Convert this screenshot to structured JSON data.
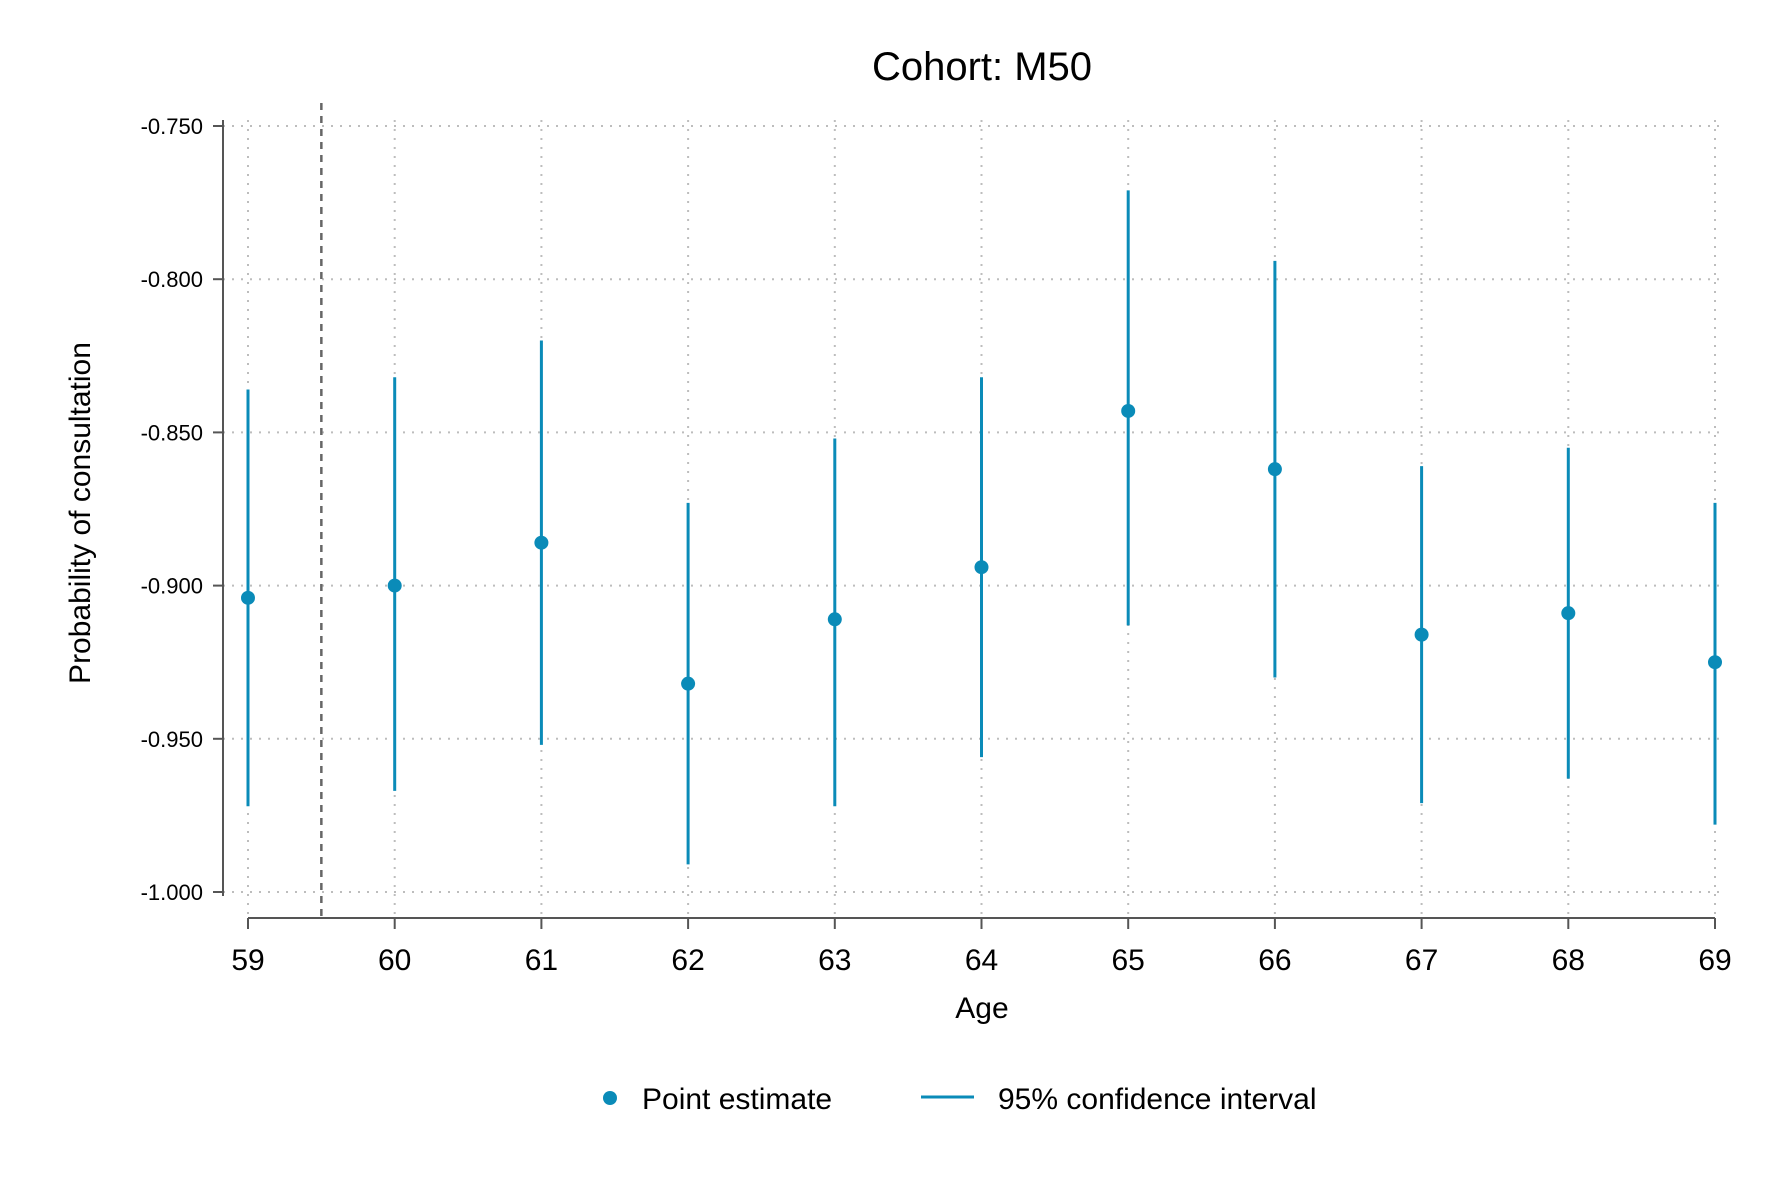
{
  "chart_data": {
    "type": "scatter",
    "title": "Cohort: M50",
    "xlabel": "Age",
    "ylabel": "Probability of consultation",
    "x": [
      59,
      60,
      61,
      62,
      63,
      64,
      65,
      66,
      67,
      68,
      69
    ],
    "xlim": [
      59,
      69
    ],
    "ylim": [
      -1.0,
      -0.75
    ],
    "yticks": [
      -0.75,
      -0.8,
      -0.85,
      -0.9,
      -0.95,
      -1.0
    ],
    "ytick_labels": [
      "-0.750",
      "-0.800",
      "-0.850",
      "-0.900",
      "-0.950",
      "-1.000"
    ],
    "xtick_labels": [
      "59",
      "60",
      "61",
      "62",
      "63",
      "64",
      "65",
      "66",
      "67",
      "68",
      "69"
    ],
    "reference_line_x": 59.5,
    "series": [
      {
        "name": "Point estimate",
        "values": [
          -0.904,
          -0.9,
          -0.886,
          -0.932,
          -0.911,
          -0.894,
          -0.843,
          -0.862,
          -0.916,
          -0.909,
          -0.925
        ]
      },
      {
        "name": "95% confidence interval",
        "lower": [
          -0.972,
          -0.967,
          -0.952,
          -0.991,
          -0.972,
          -0.956,
          -0.913,
          -0.93,
          -0.971,
          -0.963,
          -0.978
        ],
        "upper": [
          -0.836,
          -0.832,
          -0.82,
          -0.873,
          -0.852,
          -0.832,
          -0.771,
          -0.794,
          -0.861,
          -0.855,
          -0.873
        ]
      }
    ],
    "grid": true,
    "legend": {
      "position": "bottom",
      "items": [
        "Point estimate",
        "95% confidence interval"
      ]
    },
    "colors": {
      "marker": "#0a8bb8",
      "grid": "#bdbdbd",
      "axis": "#555555",
      "reference": "#666666"
    }
  }
}
